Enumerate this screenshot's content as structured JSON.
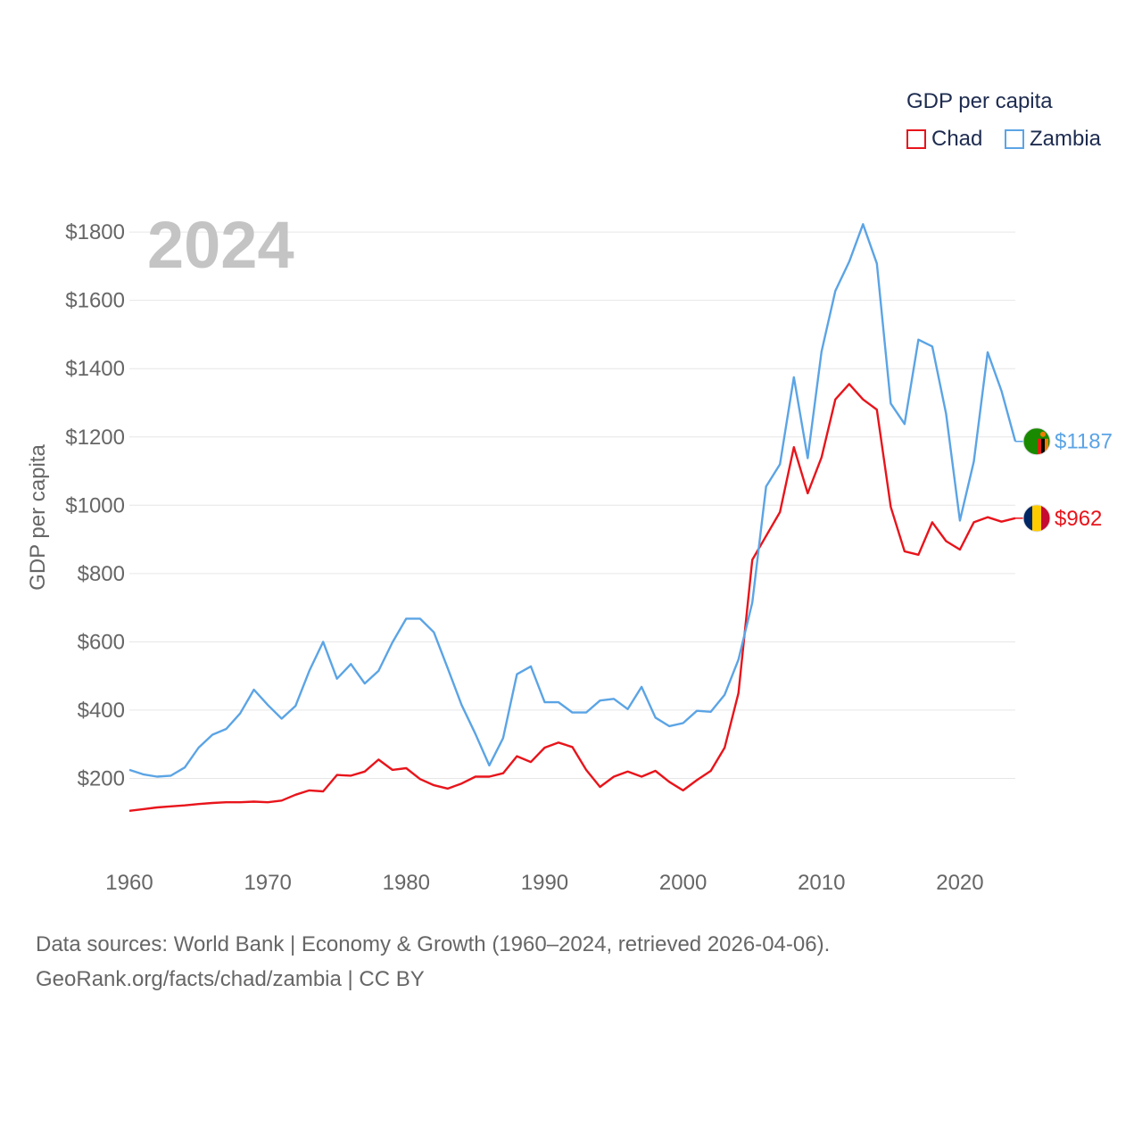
{
  "chart_data": {
    "type": "line",
    "title": "GDP per capita",
    "year_label": "2024",
    "ylabel": "GDP per capita",
    "xlabel": "",
    "xlim": [
      1960,
      2024
    ],
    "ylim": [
      0,
      1850
    ],
    "y_ticks": [
      200,
      400,
      600,
      800,
      1000,
      1200,
      1400,
      1600,
      1800
    ],
    "y_tick_labels": [
      "$200",
      "$400",
      "$600",
      "$800",
      "$1000",
      "$1200",
      "$1400",
      "$1600",
      "$1800"
    ],
    "x_ticks": [
      1960,
      1970,
      1980,
      1990,
      2000,
      2010,
      2020
    ],
    "x_tick_labels": [
      "1960",
      "1970",
      "1980",
      "1990",
      "2000",
      "2010",
      "2020"
    ],
    "grid": true,
    "legend_position": "top-right",
    "x": [
      1960,
      1961,
      1962,
      1963,
      1964,
      1965,
      1966,
      1967,
      1968,
      1969,
      1970,
      1971,
      1972,
      1973,
      1974,
      1975,
      1976,
      1977,
      1978,
      1979,
      1980,
      1981,
      1982,
      1983,
      1984,
      1985,
      1986,
      1987,
      1988,
      1989,
      1990,
      1991,
      1992,
      1993,
      1994,
      1995,
      1996,
      1997,
      1998,
      1999,
      2000,
      2001,
      2002,
      2003,
      2004,
      2005,
      2006,
      2007,
      2008,
      2009,
      2010,
      2011,
      2012,
      2013,
      2014,
      2015,
      2016,
      2017,
      2018,
      2019,
      2020,
      2021,
      2022,
      2023,
      2024
    ],
    "series": [
      {
        "name": "Chad",
        "color": "#e8141b",
        "end_label": "$962",
        "flag": "chad-flag-icon",
        "values": [
          105,
          110,
          115,
          118,
          121,
          125,
          128,
          130,
          130,
          132,
          130,
          135,
          152,
          165,
          162,
          210,
          208,
          220,
          255,
          225,
          230,
          198,
          180,
          170,
          185,
          205,
          205,
          215,
          265,
          248,
          290,
          305,
          292,
          225,
          175,
          205,
          220,
          205,
          222,
          190,
          165,
          195,
          222,
          290,
          450,
          840,
          910,
          980,
          1170,
          1035,
          1140,
          1310,
          1355,
          1310,
          1280,
          995,
          865,
          855,
          950,
          895,
          870,
          950,
          965,
          952,
          962
        ]
      },
      {
        "name": "Zambia",
        "color": "#5ba4e5",
        "end_label": "$1187",
        "flag": "zambia-flag-icon",
        "values": [
          225,
          212,
          205,
          208,
          232,
          290,
          328,
          345,
          390,
          460,
          415,
          375,
          412,
          515,
          600,
          492,
          535,
          478,
          515,
          598,
          668,
          668,
          628,
          522,
          415,
          330,
          238,
          318,
          505,
          528,
          423,
          423,
          393,
          393,
          428,
          433,
          403,
          468,
          378,
          353,
          362,
          398,
          395,
          445,
          548,
          715,
          1055,
          1120,
          1375,
          1138,
          1450,
          1628,
          1713,
          1823,
          1708,
          1298,
          1238,
          1485,
          1465,
          1268,
          955,
          1128,
          1448,
          1335,
          1187
        ]
      }
    ]
  },
  "footer": {
    "line1": "Data sources: World Bank | Economy & Growth (1960–2024, retrieved 2026-04-06).",
    "line2": "GeoRank.org/facts/chad/zambia | CC BY"
  }
}
